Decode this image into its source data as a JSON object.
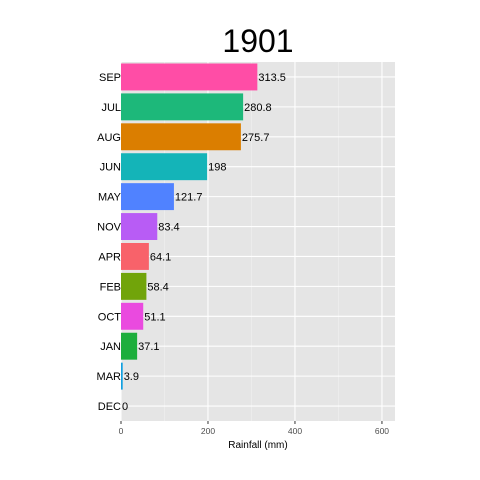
{
  "chart_data": {
    "type": "bar",
    "orientation": "horizontal",
    "title": "1901",
    "xlabel": "Rainfall (mm)",
    "ylabel": "",
    "xlim": [
      0,
      630
    ],
    "xticks": [
      0,
      200,
      400,
      600
    ],
    "tick_labels": [
      "0",
      "200",
      "400",
      "600"
    ],
    "categories": [
      "SEP",
      "JUL",
      "AUG",
      "JUN",
      "MAY",
      "NOV",
      "APR",
      "FEB",
      "OCT",
      "JAN",
      "MAR",
      "DEC"
    ],
    "values": [
      313.5,
      280.8,
      275.7,
      198,
      121.7,
      83.4,
      64.1,
      58.4,
      51.1,
      37.1,
      3.9,
      0
    ],
    "value_labels": [
      "313.5",
      "280.8",
      "275.7",
      "198",
      "121.7",
      "83.4",
      "64.1",
      "58.4",
      "51.1",
      "37.1",
      "3.9",
      "0"
    ],
    "colors": [
      "#FF4DA6",
      "#1DB87A",
      "#DB7E00",
      "#14B4B8",
      "#5082FF",
      "#B85CF5",
      "#F8626A",
      "#71A40A",
      "#EA4ADF",
      "#1DAE3C",
      "#12A0E0",
      "#7CAE00"
    ],
    "panel_background": "#E5E5E5",
    "grid": true,
    "legend": "none"
  }
}
